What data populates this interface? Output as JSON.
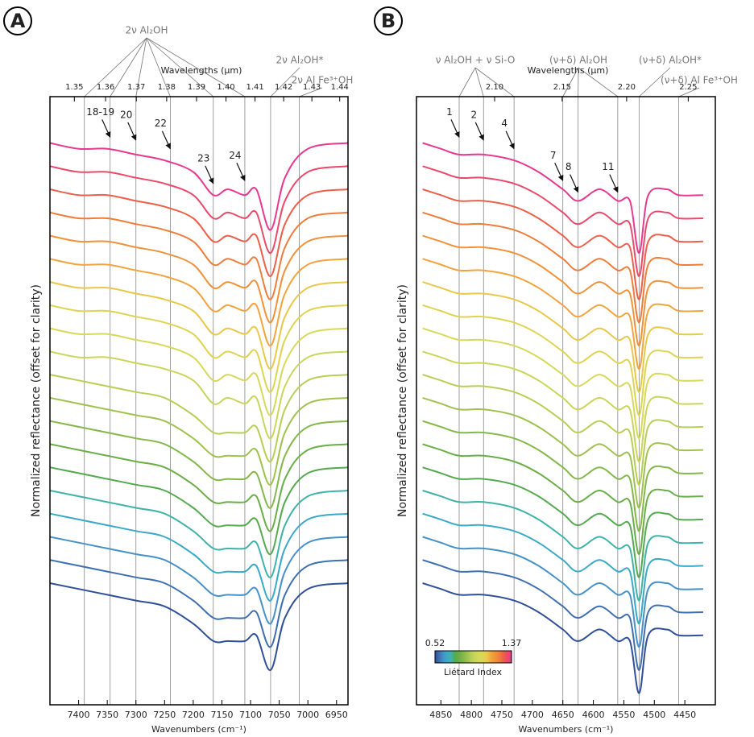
{
  "chart_data": [
    {
      "type": "line",
      "panel_label": "A",
      "xlabel": "Wavenumbers (cm⁻¹)",
      "ylabel": "Normalized reflectance (offset for clarity)",
      "x2label": "Wavelengths (µm)",
      "xlim": [
        7450,
        6930
      ],
      "ylim": [
        -5,
        100
      ],
      "xticks": [
        7400,
        7350,
        7300,
        7250,
        7200,
        7150,
        7100,
        7050,
        7000,
        6950
      ],
      "x2ticks": [
        1.35,
        1.36,
        1.37,
        1.38,
        1.39,
        {
          "value": 1.4,
          "label": "1.40"
        },
        1.41,
        1.42,
        1.43,
        1.44
      ],
      "groups": [
        {
          "label": "2ν Al₂OH",
          "lines": [
            7390,
            7345,
            7300,
            7240,
            7165,
            7110
          ]
        },
        {
          "label": "2ν Al₂OH*",
          "lines": [
            7065
          ]
        },
        {
          "label": "2ν Al Fe³⁺OH",
          "lines": [
            7015
          ]
        }
      ],
      "annotations": [
        {
          "label": "18-19",
          "x": 7345,
          "y": 93
        },
        {
          "label": "20",
          "x": 7300,
          "y": 92.5
        },
        {
          "label": "22",
          "x": 7240,
          "y": 91
        },
        {
          "label": "23",
          "x": 7165,
          "y": 85
        },
        {
          "label": "24",
          "x": 7110,
          "y": 85.5
        }
      ],
      "x": [
        7450,
        7400,
        7350,
        7300,
        7250,
        7200,
        7165,
        7140,
        7110,
        7090,
        7065,
        7040,
        7000,
        6930
      ],
      "series": [
        {
          "color": "#e8388f",
          "values": [
            92,
            91,
            91,
            90,
            89,
            87,
            83,
            84,
            83,
            84,
            77,
            86,
            91,
            92
          ]
        },
        {
          "color": "#ea4a6a",
          "values": [
            88,
            87,
            87,
            86,
            85,
            83,
            79,
            80,
            79,
            80,
            73,
            82,
            87,
            88
          ]
        },
        {
          "color": "#ec5f4a",
          "values": [
            84,
            83,
            83,
            82,
            81,
            79,
            75,
            76,
            75,
            76,
            69,
            78,
            83,
            84
          ]
        },
        {
          "color": "#ef7d3a",
          "values": [
            80,
            79,
            79,
            78,
            77,
            75,
            71,
            72,
            71,
            72,
            65,
            74,
            79,
            80
          ]
        },
        {
          "color": "#f0923a",
          "values": [
            76,
            75,
            75,
            74,
            73,
            71,
            67,
            68,
            67,
            68,
            61,
            70,
            75,
            76
          ]
        },
        {
          "color": "#f2a33c",
          "values": [
            72,
            71,
            71,
            70,
            69,
            67,
            63,
            64,
            63,
            64,
            57,
            66,
            71,
            72
          ]
        },
        {
          "color": "#e8c84a",
          "values": [
            68,
            67,
            67,
            66,
            65,
            63,
            59,
            60,
            59,
            60,
            53,
            62,
            67,
            68
          ]
        },
        {
          "color": "#dfd452",
          "values": [
            64,
            63,
            63,
            62,
            61,
            59,
            55,
            56,
            55,
            56,
            49,
            58,
            63,
            64
          ]
        },
        {
          "color": "#d6d95a",
          "values": [
            60,
            59,
            59,
            58,
            57,
            55,
            51,
            52,
            51,
            52,
            45,
            54,
            59,
            60
          ]
        },
        {
          "color": "#c9d65a",
          "values": [
            56,
            55,
            55,
            54,
            53,
            51,
            47,
            48,
            47,
            48,
            41,
            50,
            55,
            56
          ]
        },
        {
          "color": "#b7cf55",
          "values": [
            52,
            51,
            50,
            49,
            48,
            45,
            42,
            42,
            42,
            43,
            37,
            46,
            51,
            52
          ]
        },
        {
          "color": "#9fc24e",
          "values": [
            48,
            47,
            46,
            45,
            44,
            41,
            38,
            38,
            38,
            39,
            33,
            42,
            47,
            48
          ]
        },
        {
          "color": "#84b84a",
          "values": [
            44,
            43,
            42,
            41,
            40,
            37,
            34,
            34,
            34,
            35,
            29,
            38,
            43,
            44
          ]
        },
        {
          "color": "#6aae48",
          "values": [
            40,
            39,
            38,
            37,
            36,
            33,
            30,
            30,
            30,
            31,
            25,
            34,
            39,
            40
          ]
        },
        {
          "color": "#55a94f",
          "values": [
            36,
            35,
            34,
            33,
            32,
            29,
            26,
            26,
            26,
            27,
            21,
            30,
            35,
            36
          ]
        },
        {
          "color": "#3fb3a8",
          "values": [
            32,
            31,
            30,
            29,
            28,
            25,
            22,
            22,
            22,
            23,
            17,
            26,
            31,
            32
          ]
        },
        {
          "color": "#3aa9c8",
          "values": [
            28,
            27,
            26,
            25,
            24,
            21,
            18,
            18,
            18,
            19,
            13,
            22,
            27,
            28
          ]
        },
        {
          "color": "#4591c8",
          "values": [
            24,
            23,
            22,
            21,
            20,
            17,
            14,
            14,
            14,
            15,
            9,
            18,
            23,
            24
          ]
        },
        {
          "color": "#3f6fb0",
          "values": [
            20,
            19,
            18,
            17,
            16,
            13,
            10,
            10,
            10,
            11,
            5,
            14,
            19,
            20
          ]
        },
        {
          "color": "#2f4f98",
          "values": [
            16,
            15,
            14,
            13,
            12,
            9,
            6,
            6,
            6,
            7,
            1,
            10,
            15,
            16
          ]
        }
      ]
    },
    {
      "type": "line",
      "panel_label": "B",
      "xlabel": "Wavenumbers (cm⁻¹)",
      "ylabel": "Normalized reflectance (offset for clarity)",
      "x2label": "Wavelengths (µm)",
      "xlim": [
        4890,
        4400
      ],
      "ylim": [
        -5,
        100
      ],
      "xticks": [
        4850,
        4800,
        4750,
        4700,
        4650,
        4600,
        4550,
        4500,
        4450
      ],
      "x2ticks": [
        {
          "value": 2.1,
          "label": "2.10"
        },
        2.15,
        {
          "value": 2.2,
          "label": "2.20"
        },
        2.25
      ],
      "groups": [
        {
          "label": "ν Al₂OH + ν Si-O",
          "lines": [
            4820,
            4780,
            4730
          ]
        },
        {
          "label": "(ν+δ) Al₂OH",
          "lines": [
            4650,
            4625,
            4560
          ]
        },
        {
          "label": "(ν+δ) Al₂OH*",
          "lines": [
            4525
          ]
        },
        {
          "label": "(ν+δ) Al Fe³⁺OH",
          "lines": [
            4460
          ]
        }
      ],
      "annotations": [
        {
          "label": "1",
          "x": 4820,
          "y": 93
        },
        {
          "label": "2",
          "x": 4780,
          "y": 92.5
        },
        {
          "label": "4",
          "x": 4730,
          "y": 91
        },
        {
          "label": "7",
          "x": 4650,
          "y": 85.5
        },
        {
          "label": "8",
          "x": 4625,
          "y": 83.5
        },
        {
          "label": "11",
          "x": 4560,
          "y": 83.5
        }
      ],
      "colorbar": {
        "min": 0.52,
        "max": 1.37,
        "label": "Liétard Index"
      },
      "x": [
        4880,
        4850,
        4820,
        4780,
        4730,
        4690,
        4650,
        4625,
        4590,
        4560,
        4540,
        4525,
        4510,
        4480,
        4460,
        4420
      ],
      "series": [
        {
          "color": "#e8388f",
          "values": [
            92,
            91,
            90,
            90,
            89,
            87,
            84,
            82,
            84,
            82,
            82,
            73,
            83,
            84,
            83,
            83
          ]
        },
        {
          "color": "#ea4a6a",
          "values": [
            88,
            87,
            86,
            86,
            85,
            83,
            80,
            78,
            80,
            78,
            78,
            69,
            79,
            80,
            79,
            79
          ]
        },
        {
          "color": "#ec5f4a",
          "values": [
            84,
            83,
            82,
            82,
            81,
            79,
            76,
            74,
            76,
            74,
            74,
            65,
            75,
            76,
            75,
            75
          ]
        },
        {
          "color": "#ef7d3a",
          "values": [
            80,
            79,
            78,
            78,
            77,
            75,
            72,
            70,
            72,
            70,
            70,
            61,
            71,
            72,
            71,
            71
          ]
        },
        {
          "color": "#f0923a",
          "values": [
            76,
            75,
            74,
            74,
            73,
            71,
            68,
            66,
            68,
            66,
            66,
            57,
            67,
            68,
            67,
            67
          ]
        },
        {
          "color": "#f2a33c",
          "values": [
            72,
            71,
            70,
            70,
            69,
            67,
            64,
            62,
            64,
            62,
            62,
            53,
            63,
            64,
            63,
            63
          ]
        },
        {
          "color": "#e8c84a",
          "values": [
            68,
            67,
            66,
            66,
            65,
            63,
            60,
            58,
            60,
            58,
            58,
            49,
            59,
            60,
            59,
            59
          ]
        },
        {
          "color": "#dfd452",
          "values": [
            64,
            63,
            62,
            62,
            61,
            59,
            56,
            54,
            56,
            54,
            54,
            45,
            55,
            56,
            55,
            55
          ]
        },
        {
          "color": "#d6d95a",
          "values": [
            60,
            59,
            58,
            58,
            57,
            55,
            52,
            50,
            52,
            50,
            50,
            41,
            51,
            52,
            51,
            51
          ]
        },
        {
          "color": "#c9d65a",
          "values": [
            56,
            55,
            54,
            54,
            53,
            51,
            48,
            46,
            48,
            46,
            46,
            37,
            47,
            48,
            47,
            47
          ]
        },
        {
          "color": "#b7cf55",
          "values": [
            52,
            51,
            50,
            50,
            49,
            47,
            44,
            42,
            44,
            42,
            42,
            33,
            43,
            44,
            43,
            43
          ]
        },
        {
          "color": "#9fc24e",
          "values": [
            48,
            47,
            46,
            46,
            45,
            43,
            40,
            38,
            40,
            38,
            38,
            29,
            39,
            40,
            39,
            39
          ]
        },
        {
          "color": "#84b84a",
          "values": [
            44,
            43,
            42,
            42,
            41,
            39,
            36,
            34,
            36,
            34,
            34,
            25,
            35,
            36,
            35,
            35
          ]
        },
        {
          "color": "#6aae48",
          "values": [
            40,
            39,
            38,
            38,
            37,
            35,
            32,
            30,
            32,
            30,
            30,
            21,
            31,
            32,
            31,
            31
          ]
        },
        {
          "color": "#55a94f",
          "values": [
            36,
            35,
            34,
            34,
            33,
            31,
            28,
            26,
            28,
            26,
            26,
            17,
            27,
            28,
            27,
            27
          ]
        },
        {
          "color": "#3fb3a8",
          "values": [
            32,
            31,
            30,
            30,
            29,
            27,
            24,
            22,
            24,
            22,
            22,
            13,
            23,
            24,
            23,
            23
          ]
        },
        {
          "color": "#3aa9c8",
          "values": [
            28,
            27,
            26,
            26,
            25,
            23,
            20,
            18,
            20,
            18,
            18,
            9,
            19,
            20,
            19,
            19
          ]
        },
        {
          "color": "#4591c8",
          "values": [
            24,
            23,
            22,
            22,
            21,
            19,
            16,
            14,
            16,
            14,
            14,
            5,
            15,
            16,
            15,
            15
          ]
        },
        {
          "color": "#3f6fb0",
          "values": [
            20,
            19,
            18,
            18,
            17,
            15,
            12,
            10,
            12,
            10,
            10,
            1,
            11,
            12,
            11,
            11
          ]
        },
        {
          "color": "#2f4f98",
          "values": [
            16,
            15,
            14,
            14,
            13,
            11,
            8,
            6,
            8,
            6,
            6,
            -3,
            7,
            8,
            7,
            7
          ]
        }
      ]
    }
  ]
}
